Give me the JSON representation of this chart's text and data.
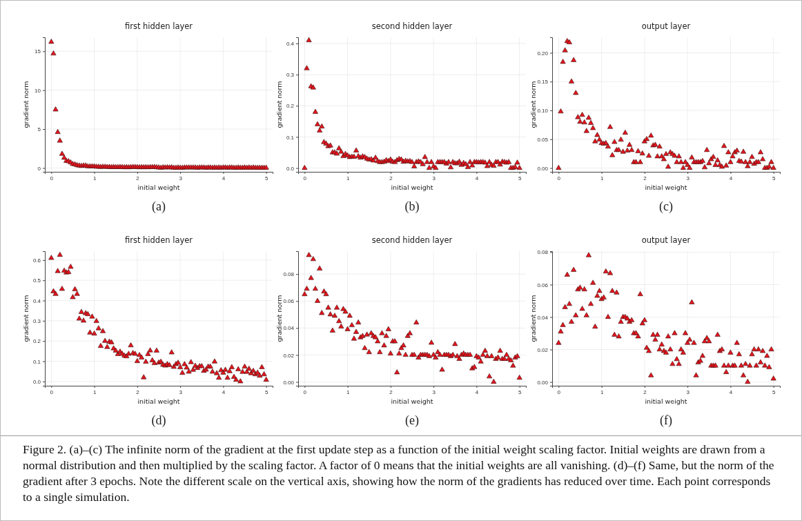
{
  "chart_data": [
    {
      "type": "scatter",
      "title": "first hidden layer",
      "xlabel": "initial weight",
      "ylabel": "gradient norm",
      "marker": "triangle",
      "grid": true,
      "xlim": [
        -0.15,
        5.15
      ],
      "xticks": [
        0,
        1,
        2,
        3,
        4,
        5
      ],
      "ylim": [
        -0.49,
        16.8
      ],
      "yticks": [
        0,
        5,
        10,
        15
      ],
      "annotations": [
        "(a)"
      ],
      "series": [
        {
          "color": "#e3141c",
          "x": [
            0,
            0.05,
            0.1,
            0.15,
            0.2,
            0.25,
            0.3,
            0.35,
            0.4,
            0.45,
            0.5,
            0.55,
            0.6,
            0.65,
            0.7,
            0.75,
            0.8,
            0.85,
            0.9,
            0.95,
            1,
            1.05,
            1.1,
            1.15,
            1.2,
            1.25,
            1.3,
            1.35,
            1.4,
            1.45,
            1.5,
            1.55,
            1.6,
            1.65,
            1.7,
            1.75,
            1.8,
            1.85,
            1.9,
            1.95,
            2,
            2.05,
            2.1,
            2.15,
            2.2,
            2.25,
            2.3,
            2.35,
            2.4,
            2.45,
            2.5,
            2.55,
            2.6,
            2.65,
            2.7,
            2.75,
            2.8,
            2.85,
            2.9,
            2.95,
            3,
            3.05,
            3.1,
            3.15,
            3.2,
            3.25,
            3.3,
            3.35,
            3.4,
            3.45,
            3.5,
            3.55,
            3.6,
            3.65,
            3.7,
            3.75,
            3.8,
            3.85,
            3.9,
            3.95,
            4,
            4.05,
            4.1,
            4.15,
            4.2,
            4.25,
            4.3,
            4.35,
            4.4,
            4.45,
            4.5,
            4.55,
            4.6,
            4.65,
            4.7,
            4.75,
            4.8,
            4.85,
            4.9,
            4.95,
            5
          ],
          "values": [
            16.2,
            14.7,
            7.5,
            4.6,
            3.5,
            1.8,
            1.3,
            0.9,
            0.85,
            0.7,
            0.5,
            0.45,
            0.35,
            0.3,
            0.25,
            0.3,
            0.3,
            0.2,
            0.2,
            0.2,
            0.2,
            0.15,
            0.15,
            0.12,
            0.15,
            0.15,
            0.12,
            0.12,
            0.1,
            0.12,
            0.1,
            0.1,
            0.12,
            0.1,
            0.08,
            0.1,
            0.08,
            0.1,
            0.12,
            0.12,
            0.1,
            0.08,
            0.1,
            0.08,
            0.1,
            0.08,
            0.1,
            0.1,
            0.12,
            0.08,
            0.05,
            0.02,
            0.08,
            0.05,
            0.08,
            0.05,
            0.08,
            0.02,
            0.02,
            0.05,
            0.02,
            0.02,
            0.05,
            0.05,
            0.05,
            0.05,
            0.05,
            0.05,
            0.02,
            0.05,
            0.05,
            0.05,
            0.02,
            0.05,
            0.05,
            0.02,
            0.05,
            0.02,
            0.05,
            0.02,
            0.05,
            0.05,
            0.02,
            0.05,
            0.05,
            0.02,
            0.02,
            0.05,
            0.02,
            0.02,
            0.05,
            0.02,
            0.05,
            0.02,
            0.05,
            0.02,
            0.02,
            0.02,
            0.02,
            0.02,
            0.02
          ]
        }
      ]
    },
    {
      "type": "scatter",
      "title": "second hidden layer",
      "xlabel": "initial weight",
      "ylabel": "gradient norm",
      "marker": "triangle",
      "grid": true,
      "xlim": [
        -0.15,
        5.15
      ],
      "xticks": [
        0,
        1,
        2,
        3,
        4,
        5
      ],
      "ylim": [
        -0.012,
        0.42
      ],
      "yticks": [
        {
          "value": 0,
          "label": "0.0"
        },
        0.1,
        0.2,
        0.3,
        0.4
      ],
      "annotations": [
        "(b)"
      ],
      "series": [
        {
          "color": "#e3141c",
          "x": [
            0,
            0.05,
            0.1,
            0.15,
            0.2,
            0.25,
            0.3,
            0.35,
            0.4,
            0.45,
            0.5,
            0.55,
            0.6,
            0.65,
            0.7,
            0.75,
            0.8,
            0.85,
            0.9,
            0.95,
            1,
            1.05,
            1.1,
            1.15,
            1.2,
            1.25,
            1.3,
            1.35,
            1.4,
            1.45,
            1.5,
            1.55,
            1.6,
            1.65,
            1.7,
            1.75,
            1.8,
            1.85,
            1.9,
            1.95,
            2,
            2.05,
            2.1,
            2.15,
            2.2,
            2.25,
            2.3,
            2.35,
            2.4,
            2.45,
            2.5,
            2.55,
            2.6,
            2.65,
            2.7,
            2.75,
            2.8,
            2.85,
            2.9,
            2.95,
            3,
            3.05,
            3.1,
            3.15,
            3.2,
            3.25,
            3.3,
            3.35,
            3.4,
            3.45,
            3.5,
            3.55,
            3.6,
            3.65,
            3.7,
            3.75,
            3.8,
            3.85,
            3.9,
            3.95,
            4,
            4.05,
            4.1,
            4.15,
            4.2,
            4.25,
            4.3,
            4.35,
            4.4,
            4.45,
            4.5,
            4.55,
            4.6,
            4.65,
            4.7,
            4.75,
            4.8,
            4.85,
            4.9,
            4.95,
            5
          ],
          "values": [
            0,
            0.32,
            0.41,
            0.262,
            0.258,
            0.18,
            0.14,
            0.12,
            0.133,
            0.083,
            0.078,
            0.07,
            0.072,
            0.05,
            0.05,
            0.046,
            0.063,
            0.052,
            0.038,
            0.045,
            0.04,
            0.035,
            0.036,
            0.036,
            0.056,
            0.038,
            0.033,
            0.037,
            0.035,
            0.03,
            0.027,
            0.028,
            0.024,
            0.033,
            0.022,
            0.019,
            0.019,
            0.02,
            0.025,
            0.022,
            0.027,
            0.02,
            0.019,
            0.025,
            0.029,
            0.027,
            0.02,
            0.023,
            0.021,
            0.022,
            0.019,
            0.005,
            0.019,
            0.021,
            0.019,
            0.012,
            0.035,
            0.019,
            0,
            0.019,
            0.005,
            0,
            0.019,
            0.019,
            0.019,
            0.019,
            0.014,
            0.019,
            0.002,
            0.019,
            0.015,
            0.015,
            0.02,
            0.01,
            0.016,
            0.012,
            0.003,
            0.019,
            0.008,
            0.019,
            0.019,
            0.018,
            0.019,
            0.019,
            0.017,
            0.006,
            0.019,
            0.01,
            0.007,
            0.019,
            0.019,
            0.011,
            0.02,
            0.019,
            0.017,
            0.019,
            0,
            0,
            0.003,
            0.017,
            0
          ]
        }
      ]
    },
    {
      "type": "scatter",
      "title": "output layer",
      "xlabel": "initial weight",
      "ylabel": "gradient norm",
      "marker": "triangle",
      "grid": true,
      "xlim": [
        -0.15,
        5.15
      ],
      "xticks": [
        0,
        1,
        2,
        3,
        4,
        5
      ],
      "ylim": [
        -0.0066,
        0.227
      ],
      "yticks": [
        {
          "value": 0,
          "label": "0.00"
        },
        0.05,
        {
          "value": 0.1,
          "label": "0.10"
        },
        0.15,
        {
          "value": 0.2,
          "label": "0.20"
        }
      ],
      "annotations": [
        "(c)"
      ],
      "series": [
        {
          "color": "#e3141c",
          "x": [
            0,
            0.05,
            0.1,
            0.15,
            0.2,
            0.25,
            0.3,
            0.35,
            0.4,
            0.45,
            0.5,
            0.55,
            0.6,
            0.65,
            0.7,
            0.75,
            0.8,
            0.85,
            0.9,
            0.95,
            1,
            1.05,
            1.1,
            1.15,
            1.2,
            1.25,
            1.3,
            1.35,
            1.4,
            1.45,
            1.5,
            1.55,
            1.6,
            1.65,
            1.7,
            1.75,
            1.8,
            1.85,
            1.9,
            1.95,
            2,
            2.05,
            2.1,
            2.15,
            2.2,
            2.25,
            2.3,
            2.35,
            2.4,
            2.45,
            2.5,
            2.55,
            2.6,
            2.65,
            2.7,
            2.75,
            2.8,
            2.85,
            2.9,
            2.95,
            3,
            3.05,
            3.1,
            3.15,
            3.2,
            3.25,
            3.3,
            3.35,
            3.4,
            3.45,
            3.5,
            3.55,
            3.6,
            3.65,
            3.7,
            3.75,
            3.8,
            3.85,
            3.9,
            3.95,
            4,
            4.05,
            4.1,
            4.15,
            4.2,
            4.25,
            4.3,
            4.35,
            4.4,
            4.45,
            4.5,
            4.55,
            4.6,
            4.65,
            4.7,
            4.75,
            4.8,
            4.85,
            4.9,
            4.95,
            5
          ],
          "values": [
            0,
            0.098,
            0.184,
            0.204,
            0.22,
            0.218,
            0.15,
            0.187,
            0.13,
            0.088,
            0.08,
            0.092,
            0.079,
            0.064,
            0.087,
            0.078,
            0.069,
            0.046,
            0.057,
            0.049,
            0.043,
            0.042,
            0.043,
            0.037,
            0.071,
            0.022,
            0.045,
            0.031,
            0.031,
            0.049,
            0.028,
            0.061,
            0.03,
            0.04,
            0.031,
            0.01,
            0.01,
            0.029,
            0.01,
            0.025,
            0.046,
            0.05,
            0.021,
            0.056,
            0.039,
            0.04,
            0.02,
            0.037,
            0.02,
            0.015,
            0.024,
            0.002,
            0.027,
            0.024,
            0.021,
            0.01,
            0.02,
            0.01,
            0,
            0.01,
            0.005,
            0,
            0.018,
            0.01,
            0.01,
            0.01,
            0.01,
            0.012,
            0.001,
            0.031,
            0.008,
            0.015,
            0.019,
            0.005,
            0.013,
            0.005,
            0.002,
            0.038,
            0.004,
            0.027,
            0.01,
            0.02,
            0.027,
            0.03,
            0.012,
            0.011,
            0.028,
            0.01,
            0.003,
            0.01,
            0.019,
            0.007,
            0.01,
            0.01,
            0.027,
            0.015,
            0,
            0,
            0.002,
            0.01,
            0
          ]
        }
      ]
    },
    {
      "type": "scatter",
      "title": "first hidden layer",
      "xlabel": "initial weight",
      "ylabel": "gradient norm",
      "marker": "triangle",
      "grid": true,
      "xlim": [
        -0.15,
        5.15
      ],
      "xticks": [
        0,
        1,
        2,
        3,
        4,
        5
      ],
      "ylim": [
        -0.021,
        0.644
      ],
      "yticks": [
        {
          "value": 0,
          "label": "0.0"
        },
        0.1,
        0.2,
        0.3,
        0.4,
        0.5,
        0.6
      ],
      "annotations": [
        "(d)"
      ],
      "series": [
        {
          "color": "#e3141c",
          "x": [
            0,
            0.05,
            0.1,
            0.15,
            0.2,
            0.25,
            0.3,
            0.35,
            0.4,
            0.45,
            0.5,
            0.55,
            0.6,
            0.65,
            0.7,
            0.75,
            0.8,
            0.85,
            0.9,
            0.95,
            1,
            1.05,
            1.1,
            1.15,
            1.2,
            1.25,
            1.3,
            1.35,
            1.4,
            1.45,
            1.5,
            1.55,
            1.6,
            1.65,
            1.7,
            1.75,
            1.8,
            1.85,
            1.9,
            1.95,
            2,
            2.05,
            2.1,
            2.15,
            2.2,
            2.25,
            2.3,
            2.35,
            2.4,
            2.45,
            2.5,
            2.55,
            2.6,
            2.65,
            2.7,
            2.75,
            2.8,
            2.85,
            2.9,
            2.95,
            3,
            3.05,
            3.1,
            3.15,
            3.2,
            3.25,
            3.3,
            3.35,
            3.4,
            3.45,
            3.5,
            3.55,
            3.6,
            3.65,
            3.7,
            3.75,
            3.8,
            3.85,
            3.9,
            3.95,
            4,
            4.05,
            4.1,
            4.15,
            4.2,
            4.25,
            4.3,
            4.35,
            4.4,
            4.45,
            4.5,
            4.55,
            4.6,
            4.65,
            4.7,
            4.75,
            4.8,
            4.85,
            4.9,
            4.95,
            5
          ],
          "values": [
            0.61,
            0.445,
            0.432,
            0.545,
            0.625,
            0.457,
            0.547,
            0.538,
            0.54,
            0.566,
            0.416,
            0.455,
            0.432,
            0.31,
            0.343,
            0.3,
            0.337,
            0.332,
            0.241,
            0.32,
            0.236,
            0.298,
            0.262,
            0.175,
            0.248,
            0.2,
            0.17,
            0.196,
            0.193,
            0.163,
            0.152,
            0.135,
            0.147,
            0.136,
            0.127,
            0.124,
            0.136,
            0.178,
            0.14,
            0.136,
            0.1,
            0.13,
            0.118,
            0.02,
            0.097,
            0.135,
            0.153,
            0.104,
            0.09,
            0.152,
            0.093,
            0.097,
            0.082,
            0.078,
            0.085,
            0.08,
            0.143,
            0.072,
            0.085,
            0.092,
            0.07,
            0.042,
            0.085,
            0.068,
            0.048,
            0.095,
            0.057,
            0.077,
            0.066,
            0.075,
            0.075,
            0.052,
            0.058,
            0.073,
            0.073,
            0.048,
            0.098,
            0.04,
            0.018,
            0.055,
            0.043,
            0.057,
            0.018,
            0.05,
            0.07,
            0.022,
            0.008,
            0.06,
            0,
            0.047,
            0.073,
            0.047,
            0.062,
            0.04,
            0.052,
            0.035,
            0.043,
            0.028,
            0.07,
            0.035,
            0.008
          ]
        }
      ]
    },
    {
      "type": "scatter",
      "title": "second hidden layer",
      "xlabel": "initial weight",
      "ylabel": "gradient norm",
      "marker": "triangle",
      "grid": true,
      "xlim": [
        -0.15,
        5.15
      ],
      "xticks": [
        0,
        1,
        2,
        3,
        4,
        5
      ],
      "ylim": [
        -0.0028,
        0.097
      ],
      "yticks": [
        {
          "value": 0,
          "label": "0.00"
        },
        0.02,
        0.04,
        0.06,
        0.08
      ],
      "annotations": [
        "(e)"
      ],
      "series": [
        {
          "color": "#e3141c",
          "x": [
            0,
            0.05,
            0.1,
            0.15,
            0.2,
            0.25,
            0.3,
            0.35,
            0.4,
            0.45,
            0.5,
            0.55,
            0.6,
            0.65,
            0.7,
            0.75,
            0.8,
            0.85,
            0.9,
            0.95,
            1,
            1.05,
            1.1,
            1.15,
            1.2,
            1.25,
            1.3,
            1.35,
            1.4,
            1.45,
            1.5,
            1.55,
            1.6,
            1.65,
            1.7,
            1.75,
            1.8,
            1.85,
            1.9,
            1.95,
            2,
            2.05,
            2.1,
            2.15,
            2.2,
            2.25,
            2.3,
            2.35,
            2.4,
            2.45,
            2.5,
            2.55,
            2.6,
            2.65,
            2.7,
            2.75,
            2.8,
            2.85,
            2.9,
            2.95,
            3,
            3.05,
            3.1,
            3.15,
            3.2,
            3.25,
            3.3,
            3.35,
            3.4,
            3.45,
            3.5,
            3.55,
            3.6,
            3.65,
            3.7,
            3.75,
            3.8,
            3.85,
            3.9,
            3.95,
            4,
            4.05,
            4.1,
            4.15,
            4.2,
            4.25,
            4.3,
            4.35,
            4.4,
            4.45,
            4.5,
            4.55,
            4.6,
            4.65,
            4.7,
            4.75,
            4.8,
            4.85,
            4.9,
            4.95,
            5
          ],
          "values": [
            0.065,
            0.069,
            0.094,
            0.077,
            0.091,
            0.069,
            0.06,
            0.084,
            0.051,
            0.067,
            0.065,
            0.055,
            0.05,
            0.038,
            0.049,
            0.055,
            0.045,
            0.041,
            0.054,
            0.052,
            0.039,
            0.049,
            0.042,
            0.032,
            0.037,
            0.044,
            0.033,
            0.034,
            0.025,
            0.035,
            0.022,
            0.036,
            0.034,
            0.033,
            0.03,
            0.022,
            0.036,
            0.027,
            0.034,
            0.039,
            0.021,
            0.03,
            0.03,
            0.007,
            0.021,
            0.025,
            0.027,
            0.02,
            0.034,
            0.036,
            0.02,
            0.02,
            0.044,
            0.018,
            0.02,
            0.02,
            0.02,
            0.02,
            0.019,
            0.029,
            0.02,
            0.018,
            0.022,
            0.02,
            0.009,
            0.02,
            0.02,
            0.02,
            0.019,
            0.02,
            0.028,
            0.019,
            0.017,
            0.02,
            0.021,
            0.02,
            0.02,
            0.02,
            0.01,
            0.011,
            0.019,
            0.018,
            0.015,
            0.02,
            0.023,
            0.019,
            0.004,
            0.019,
            0,
            0.017,
            0.018,
            0.023,
            0.017,
            0.017,
            0.02,
            0.017,
            0.016,
            0.012,
            0.018,
            0.019,
            0.003
          ]
        }
      ]
    },
    {
      "type": "scatter",
      "title": "output layer",
      "xlabel": "initial weight",
      "ylabel": "gradient norm",
      "marker": "triangle",
      "grid": true,
      "xlim": [
        -0.15,
        5.15
      ],
      "xticks": [
        0,
        1,
        2,
        3,
        4,
        5
      ],
      "ylim": [
        -0.0023,
        0.0806
      ],
      "yticks": [
        {
          "value": 0,
          "label": "0.00"
        },
        0.02,
        0.04,
        0.06,
        0.08
      ],
      "annotations": [
        "(f)",
        "Figure 2. (a)–(c) The infinite norm of the gradient at the first update step as a function of the initial weight scaling factor. Initial weights are drawn from a normal distribution and then multiplied by the scaling factor. A factor of 0 means that the initial weights are all vanishing. (d)–(f) Same, but the norm of the gradient after 3 epochs. Note the different scale on the vertical axis, showing how the norm of the gradients has reduced over time. Each point corresponds to a single simulation."
      ],
      "series": [
        {
          "color": "#e3141c",
          "x": [
            0,
            0.05,
            0.1,
            0.15,
            0.2,
            0.25,
            0.3,
            0.35,
            0.4,
            0.45,
            0.5,
            0.55,
            0.6,
            0.65,
            0.7,
            0.75,
            0.8,
            0.85,
            0.9,
            0.95,
            1,
            1.05,
            1.1,
            1.15,
            1.2,
            1.25,
            1.3,
            1.35,
            1.4,
            1.45,
            1.5,
            1.55,
            1.6,
            1.65,
            1.7,
            1.75,
            1.8,
            1.85,
            1.9,
            1.95,
            2,
            2.05,
            2.1,
            2.15,
            2.2,
            2.25,
            2.3,
            2.35,
            2.4,
            2.45,
            2.5,
            2.55,
            2.6,
            2.65,
            2.7,
            2.75,
            2.8,
            2.85,
            2.9,
            2.95,
            3,
            3.05,
            3.1,
            3.15,
            3.2,
            3.25,
            3.3,
            3.35,
            3.4,
            3.45,
            3.5,
            3.55,
            3.6,
            3.65,
            3.7,
            3.75,
            3.8,
            3.85,
            3.9,
            3.95,
            4,
            4.05,
            4.1,
            4.15,
            4.2,
            4.25,
            4.3,
            4.35,
            4.4,
            4.45,
            4.5,
            4.55,
            4.6,
            4.65,
            4.7,
            4.75,
            4.8,
            4.85,
            4.9,
            4.95,
            5
          ],
          "values": [
            0.024,
            0.031,
            0.035,
            0.046,
            0.066,
            0.048,
            0.037,
            0.069,
            0.041,
            0.057,
            0.058,
            0.045,
            0.057,
            0.041,
            0.078,
            0.048,
            0.061,
            0.034,
            0.053,
            0.056,
            0.051,
            0.052,
            0.068,
            0.04,
            0.067,
            0.056,
            0.029,
            0.055,
            0.028,
            0.037,
            0.04,
            0.04,
            0.039,
            0.037,
            0.038,
            0.03,
            0.03,
            0.028,
            0.054,
            0.036,
            0.038,
            0.021,
            0.019,
            0.004,
            0.029,
            0.026,
            0.029,
            0.02,
            0.023,
            0.019,
            0.018,
            0.028,
            0.02,
            0.011,
            0.03,
            0.014,
            0.011,
            0.02,
            0.018,
            0.03,
            0.024,
            0.026,
            0.049,
            0.024,
            0.004,
            0.012,
            0.013,
            0.016,
            0.025,
            0.027,
            0.025,
            0.01,
            0.01,
            0.01,
            0.029,
            0.019,
            0.02,
            0.01,
            0.006,
            0.01,
            0.018,
            0.01,
            0.01,
            0.024,
            0.017,
            0.01,
            0.004,
            0.011,
            0,
            0.01,
            0.017,
            0.02,
            0.01,
            0.02,
            0.012,
            0.019,
            0.01,
            0.016,
            0.009,
            0.02,
            0.002
          ]
        }
      ]
    }
  ]
}
